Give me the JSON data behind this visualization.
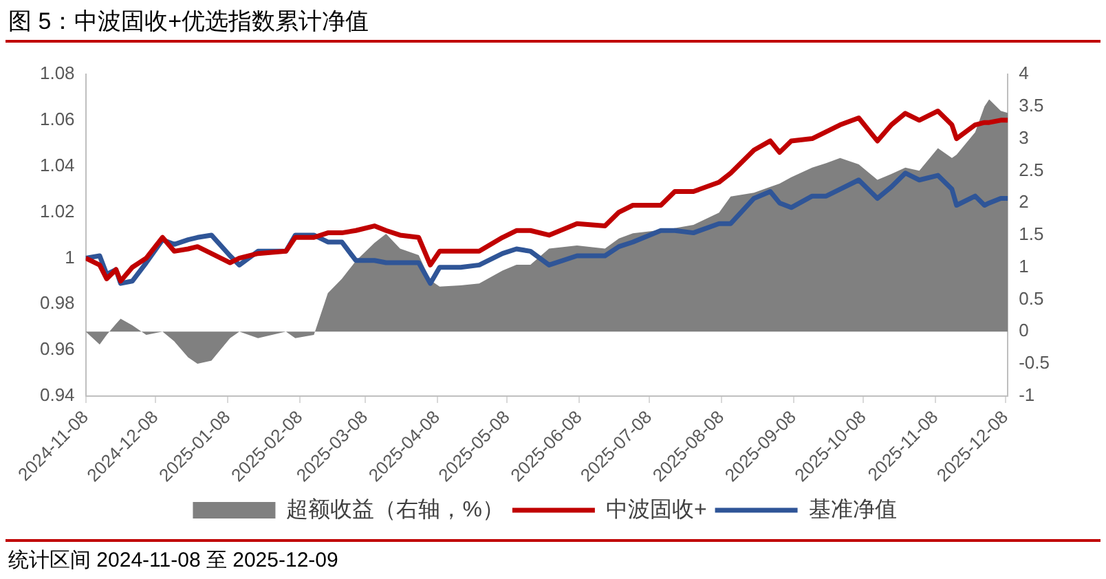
{
  "chart_data": {
    "type": "line",
    "title": "图 5：中波固收+优选指数累计净值",
    "legend": "bottom",
    "annotations": [
      "统计区间 2024-11-08 至 2025-12-09"
    ],
    "x": [
      "2024-11-08",
      "2024-11-14",
      "2024-11-17",
      "2024-11-21",
      "2024-11-23",
      "2024-11-28",
      "2024-12-04",
      "2024-12-11",
      "2024-12-16",
      "2024-12-22",
      "2024-12-26",
      "2025-01-01",
      "2025-01-09",
      "2025-01-13",
      "2025-01-21",
      "2025-02-02",
      "2025-02-06",
      "2025-02-14",
      "2025-02-20",
      "2025-02-26",
      "2025-03-04",
      "2025-03-12",
      "2025-03-17",
      "2025-03-23",
      "2025-03-31",
      "2025-04-05",
      "2025-04-09",
      "2025-04-18",
      "2025-04-26",
      "2025-05-06",
      "2025-05-12",
      "2025-05-18",
      "2025-05-26",
      "2025-06-07",
      "2025-06-19",
      "2025-06-25",
      "2025-07-01",
      "2025-07-13",
      "2025-07-19",
      "2025-07-27",
      "2025-08-07",
      "2025-08-12",
      "2025-08-22",
      "2025-08-29",
      "2025-09-02",
      "2025-09-07",
      "2025-09-16",
      "2025-09-22",
      "2025-09-28",
      "2025-10-06",
      "2025-10-14",
      "2025-10-20",
      "2025-10-26",
      "2025-11-01",
      "2025-11-09",
      "2025-11-15",
      "2025-11-17",
      "2025-11-25",
      "2025-11-29",
      "2025-12-01",
      "2025-12-06",
      "2025-12-09"
    ],
    "xlim": [
      "2024-11-08",
      "2025-12-09"
    ],
    "xticks": [
      "2024-11-08",
      "2024-12-08",
      "2025-01-08",
      "2025-02-08",
      "2025-03-08",
      "2025-04-08",
      "2025-05-08",
      "2025-06-08",
      "2025-07-08",
      "2025-08-08",
      "2025-09-08",
      "2025-10-08",
      "2025-11-08",
      "2025-12-08"
    ],
    "ylim": [
      0.94,
      1.08
    ],
    "yticks": [
      0.94,
      0.96,
      0.98,
      1,
      1.02,
      1.04,
      1.06,
      1.08
    ],
    "y2lim": [
      -1,
      4
    ],
    "y2ticks": [
      -1,
      -0.5,
      0,
      0.5,
      1,
      1.5,
      2,
      2.5,
      3,
      3.5,
      4
    ],
    "series": [
      {
        "name": "超额收益（右轴，%）",
        "type": "area",
        "axis": "y2",
        "color": "#808080",
        "values": [
          0,
          -0.2,
          -0.05,
          0.12,
          0.2,
          0.1,
          -0.05,
          0,
          -0.15,
          -0.4,
          -0.5,
          -0.45,
          -0.1,
          0,
          -0.1,
          0,
          -0.1,
          -0.05,
          0.6,
          0.82,
          1.1,
          1.38,
          1.52,
          1.29,
          1.19,
          0.8,
          0.7,
          0.72,
          0.75,
          0.95,
          1.04,
          1.04,
          1.29,
          1.34,
          1.29,
          1.45,
          1.53,
          1.58,
          1.61,
          1.66,
          1.85,
          2.1,
          2.16,
          2.25,
          2.3,
          2.4,
          2.55,
          2.62,
          2.7,
          2.6,
          2.36,
          2.45,
          2.55,
          2.5,
          2.85,
          2.7,
          2.75,
          3.1,
          3.5,
          3.61,
          3.43,
          3.4
        ]
      },
      {
        "name": "中波固收+",
        "type": "line",
        "color": "#c00000",
        "values": [
          1,
          0.997,
          0.991,
          0.995,
          0.99,
          0.996,
          1,
          1.009,
          1.003,
          1.004,
          1.005,
          1.002,
          0.998,
          1,
          1.002,
          1.003,
          1.009,
          1.009,
          1.011,
          1.011,
          1.012,
          1.014,
          1.012,
          1.01,
          1.009,
          0.997,
          1.003,
          1.003,
          1.003,
          1.009,
          1.012,
          1.012,
          1.01,
          1.015,
          1.014,
          1.02,
          1.023,
          1.023,
          1.029,
          1.029,
          1.033,
          1.037,
          1.047,
          1.051,
          1.046,
          1.051,
          1.052,
          1.055,
          1.058,
          1.061,
          1.051,
          1.058,
          1.063,
          1.06,
          1.064,
          1.058,
          1.052,
          1.058,
          1.059,
          1.059,
          1.06,
          1.06
        ]
      },
      {
        "name": "基准净值",
        "type": "line",
        "color": "#2f5597",
        "values": [
          1,
          1.001,
          0.993,
          0.995,
          0.989,
          0.99,
          0.998,
          1.008,
          1.006,
          1.008,
          1.009,
          1.01,
          1.001,
          0.997,
          1.003,
          1.003,
          1.01,
          1.01,
          1.007,
          1.007,
          0.999,
          0.999,
          0.998,
          0.998,
          0.998,
          0.989,
          0.996,
          0.996,
          0.997,
          1.002,
          1.004,
          1.003,
          0.997,
          1.001,
          1.001,
          1.005,
          1.007,
          1.012,
          1.012,
          1.011,
          1.015,
          1.015,
          1.026,
          1.029,
          1.024,
          1.022,
          1.027,
          1.027,
          1.03,
          1.034,
          1.026,
          1.031,
          1.037,
          1.034,
          1.036,
          1.03,
          1.023,
          1.027,
          1.023,
          1.024,
          1.026,
          1.026
        ]
      }
    ]
  }
}
